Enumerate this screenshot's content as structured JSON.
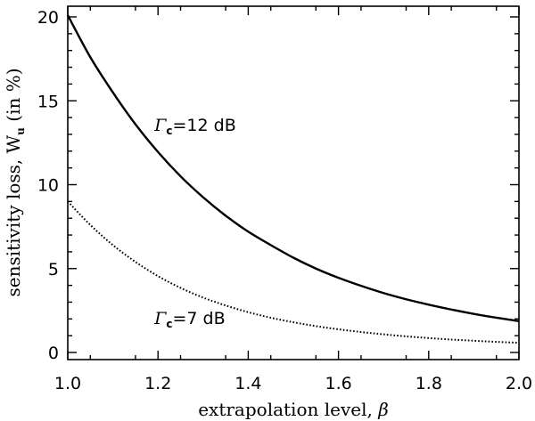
{
  "chart_data": {
    "type": "line",
    "xlabel_text": "extrapolation level, ",
    "xlabel_symbol": "β",
    "ylabel_text": "sensitivity loss, W",
    "ylabel_subscript": "u",
    "ylabel_suffix": " (in %)",
    "xlim": [
      1.0,
      2.0
    ],
    "ylim": [
      0,
      21
    ],
    "x_ticks": [
      1.0,
      1.2,
      1.4,
      1.6,
      1.8,
      2.0
    ],
    "x_tick_labels": [
      "1.0",
      "1.2",
      "1.4",
      "1.6",
      "1.8",
      "2.0"
    ],
    "y_ticks": [
      0,
      5,
      10,
      15,
      20
    ],
    "y_tick_labels": [
      "0",
      "5",
      "10",
      "15",
      "20"
    ],
    "series": [
      {
        "name": "Γc=12 dB",
        "style": "solid",
        "x": [
          1.0,
          1.05,
          1.1,
          1.15,
          1.2,
          1.25,
          1.3,
          1.35,
          1.4,
          1.45,
          1.5,
          1.55,
          1.6,
          1.65,
          1.7,
          1.75,
          1.8,
          1.85,
          1.9,
          1.95,
          2.0
        ],
        "y": [
          20.1,
          17.6,
          15.5,
          13.6,
          11.95,
          10.5,
          9.25,
          8.15,
          7.2,
          6.4,
          5.65,
          5.0,
          4.45,
          3.97,
          3.54,
          3.17,
          2.85,
          2.56,
          2.3,
          2.07,
          1.87
        ]
      },
      {
        "name": "Γc=7 dB",
        "style": "dotted",
        "x": [
          1.0,
          1.05,
          1.1,
          1.15,
          1.2,
          1.25,
          1.3,
          1.35,
          1.4,
          1.45,
          1.5,
          1.55,
          1.6,
          1.65,
          1.7,
          1.75,
          1.8,
          1.85,
          1.9,
          1.95,
          2.0
        ],
        "y": [
          9.0,
          7.6,
          6.4,
          5.4,
          4.55,
          3.85,
          3.27,
          2.8,
          2.4,
          2.07,
          1.8,
          1.57,
          1.38,
          1.22,
          1.08,
          0.96,
          0.86,
          0.77,
          0.7,
          0.63,
          0.58
        ]
      }
    ],
    "annotations": [
      {
        "gamma": "Γ",
        "sub": "c",
        "rest": "=12 dB",
        "x": 1.2,
        "y": 13.2
      },
      {
        "gamma": "Γ",
        "sub": "c",
        "rest": "=7 dB",
        "x": 1.2,
        "y": 1.7
      }
    ],
    "grid": false,
    "legend": "none"
  }
}
